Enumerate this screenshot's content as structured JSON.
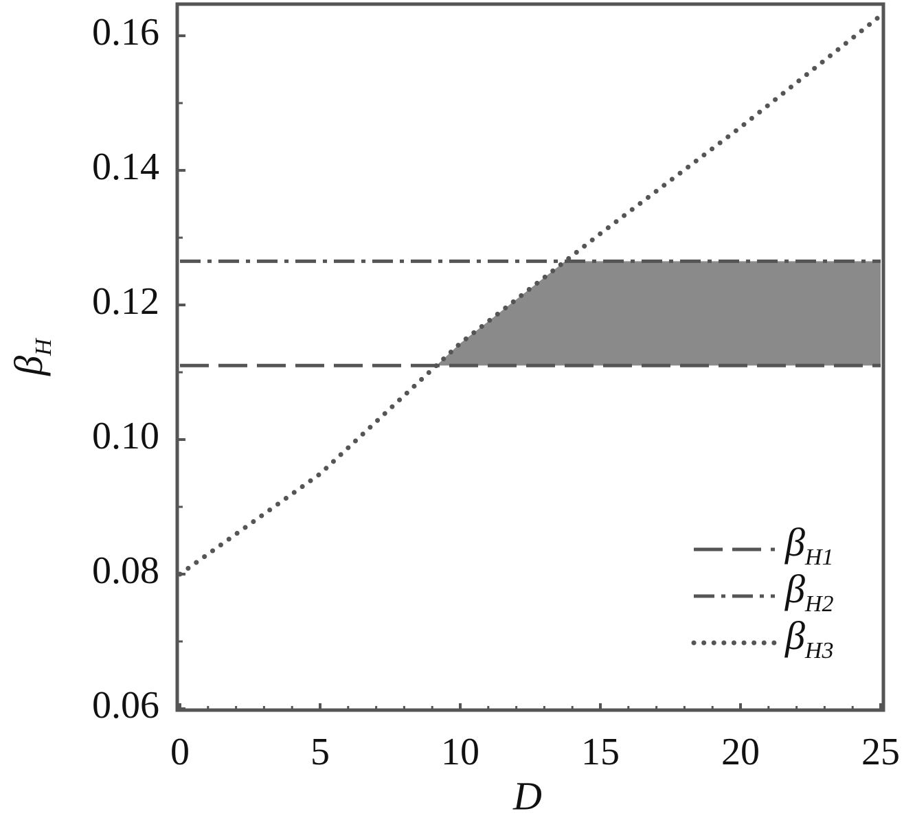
{
  "chart_data": {
    "type": "line",
    "x_label": "D",
    "y_label": "βH",
    "x": [
      0,
      5,
      10,
      15,
      20,
      25
    ],
    "series": [
      {
        "name": "βH1",
        "color": "#555555",
        "style": "dashed",
        "values": [
          0.111,
          0.111,
          0.111,
          0.111,
          0.111,
          0.111
        ]
      },
      {
        "name": "βH2",
        "color": "#555555",
        "style": "dashdot",
        "values": [
          0.1265,
          0.1265,
          0.1265,
          0.1265,
          0.1265,
          0.1265
        ]
      },
      {
        "name": "βH3",
        "color": "#555555",
        "style": "dotted",
        "values": [
          0.08,
          0.0949,
          0.1143,
          0.1306,
          0.1464,
          0.163
        ]
      }
    ],
    "fill_color": "#8a8a8a",
    "xlim": [
      0,
      25
    ],
    "xticks": [
      0,
      5,
      10,
      15,
      20,
      25
    ],
    "ylim": [
      0.06,
      0.1645
    ],
    "yticks": [
      0.06,
      0.08,
      {
        "value": 0.1,
        "label": "0.10"
      },
      0.12,
      0.14,
      0.16
    ],
    "legend": "right"
  }
}
